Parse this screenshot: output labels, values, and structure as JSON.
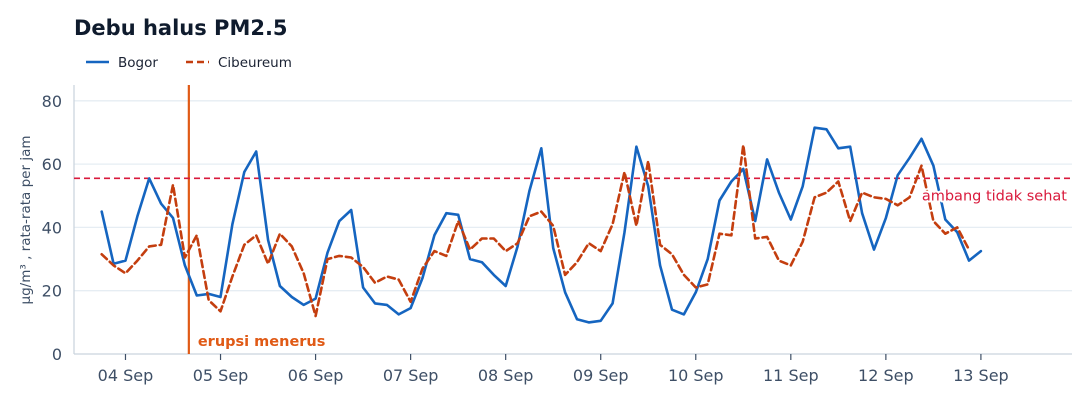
{
  "chart_data": {
    "type": "line",
    "title": "Debu halus PM2.5",
    "xlabel": "",
    "ylabel": "µg/m³ , rata-rata per jam",
    "ylim": [
      0,
      85
    ],
    "yticks": [
      0,
      20,
      40,
      60,
      80
    ],
    "xlim": [
      "2025-09-03 11:00",
      "2025-09-13 23:00"
    ],
    "xtick_labels": [
      "04 Sep",
      "05 Sep",
      "06 Sep",
      "07 Sep",
      "08 Sep",
      "09 Sep",
      "10 Sep",
      "11 Sep",
      "12 Sep",
      "13 Sep"
    ],
    "x_start": "2025-09-03 18:00",
    "x_step_hours": 3,
    "grid": "horizontal",
    "legend_placement": "top-left",
    "series": [
      {
        "name": "Bogor",
        "color": "#1565c0",
        "style": "solid",
        "values": [
          45,
          28.5,
          29.5,
          43.5,
          55.5,
          47.5,
          43,
          28,
          18.5,
          19,
          18,
          41,
          57.5,
          64,
          36,
          21.5,
          18,
          15.5,
          17.5,
          32,
          42,
          45.5,
          21,
          16,
          15.5,
          12.5,
          14.5,
          24,
          37.5,
          44.5,
          44,
          30,
          29,
          25,
          21.5,
          34,
          51.5,
          65,
          33.5,
          19.5,
          11,
          10,
          10.5,
          16,
          38.5,
          65.5,
          53,
          28,
          14,
          12.5,
          19.5,
          30,
          48.5,
          54.5,
          58.5,
          42,
          61.5,
          51,
          42.5,
          53,
          71.5,
          71,
          65,
          65.5,
          44.5,
          33,
          43,
          56.5,
          62,
          68,
          59.5,
          42.5,
          38.5,
          29.5,
          32.5
        ]
      },
      {
        "name": "Cibeureum",
        "color": "#c43e0f",
        "style": "dashed",
        "values": [
          31.5,
          28,
          25.5,
          29.5,
          34,
          34.5,
          53.5,
          30.5,
          37.5,
          17,
          13.5,
          24.5,
          34.5,
          37.5,
          28.5,
          38,
          34,
          25.5,
          12,
          30,
          31,
          30.5,
          27.5,
          22.5,
          24.5,
          23.5,
          16.5,
          27,
          32.5,
          31,
          42,
          33,
          36.5,
          36.5,
          32.5,
          35,
          43.5,
          45,
          40.5,
          25,
          29,
          35,
          32.5,
          41,
          57.5,
          40.5,
          61,
          34.5,
          31.5,
          25,
          21,
          22,
          38,
          37.5,
          66,
          36.5,
          37,
          29.5,
          28,
          35.5,
          49.5,
          51,
          54.5,
          42,
          51,
          49.5,
          49,
          47,
          49.5,
          59.5,
          42,
          38,
          40,
          33
        ]
      }
    ],
    "annotations": [
      {
        "type": "vline",
        "x": "2025-09-04 16:00",
        "label": "erupsi menerus",
        "color": "#e05a16"
      },
      {
        "type": "hline",
        "y": 55.5,
        "label": "ambang tidak sehat",
        "color": "#d91a3c"
      }
    ]
  }
}
